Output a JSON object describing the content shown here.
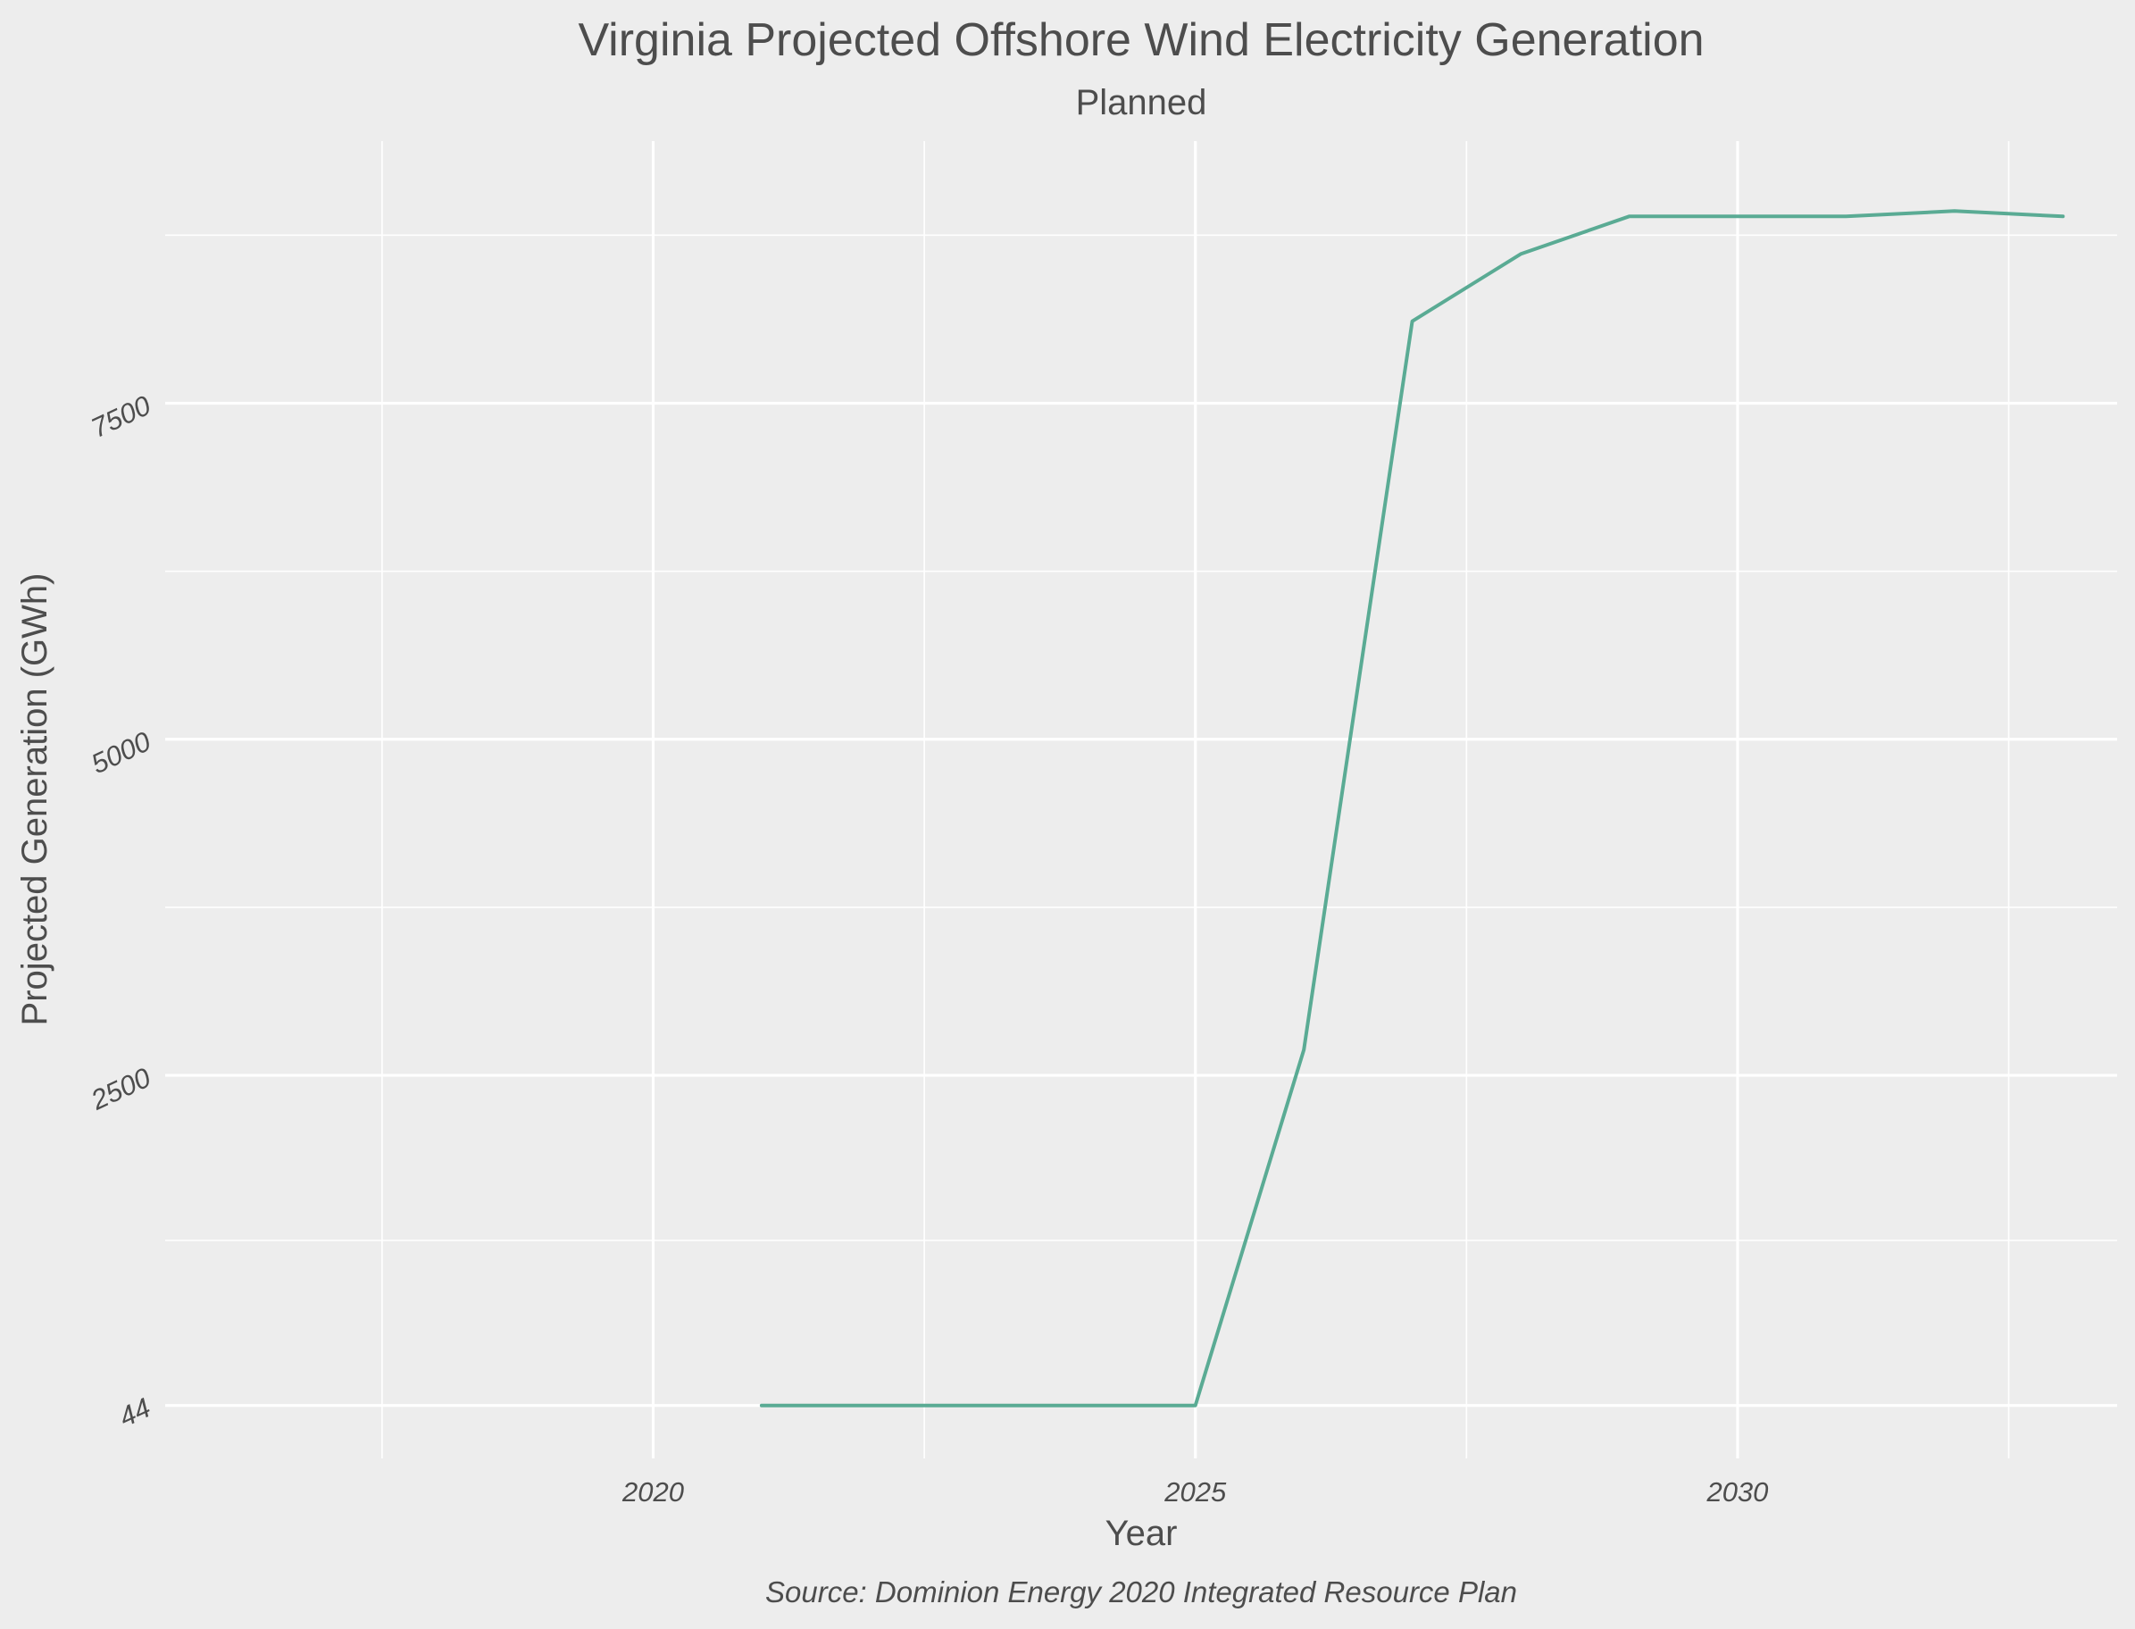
{
  "chart_data": {
    "type": "line",
    "title": "Virginia Projected Offshore Wind Electricity Generation",
    "subtitle": "Planned",
    "xlabel": "Year",
    "ylabel": "Projected Generation (GWh)",
    "caption": "Source: Dominion Energy 2020 Integrated Resource Plan",
    "xlim": [
      2015.5,
      2033.5
    ],
    "ylim": [
      -350,
      9450
    ],
    "x_ticks": [
      2020,
      2025,
      2030
    ],
    "x_tick_labels": [
      "2020",
      "2025",
      "2030"
    ],
    "x_minor_ticks": [
      2017.5,
      2022.5,
      2027.5,
      2032.5
    ],
    "y_ticks": [
      44,
      2500,
      5000,
      7500
    ],
    "y_tick_labels": [
      "44",
      "2500",
      "5000",
      "7500"
    ],
    "y_minor_ticks": [
      1272,
      3750,
      6250,
      8750
    ],
    "grid": true,
    "legend": "none",
    "series": [
      {
        "color": "#5aab94",
        "x": [
          2021,
          2022,
          2023,
          2024,
          2025,
          2026,
          2027,
          2028,
          2029,
          2030,
          2031,
          2032,
          2033
        ],
        "y": [
          44,
          44,
          44,
          44,
          44,
          2690,
          8110,
          8610,
          8890,
          8890,
          8890,
          8930,
          8890
        ]
      }
    ]
  }
}
